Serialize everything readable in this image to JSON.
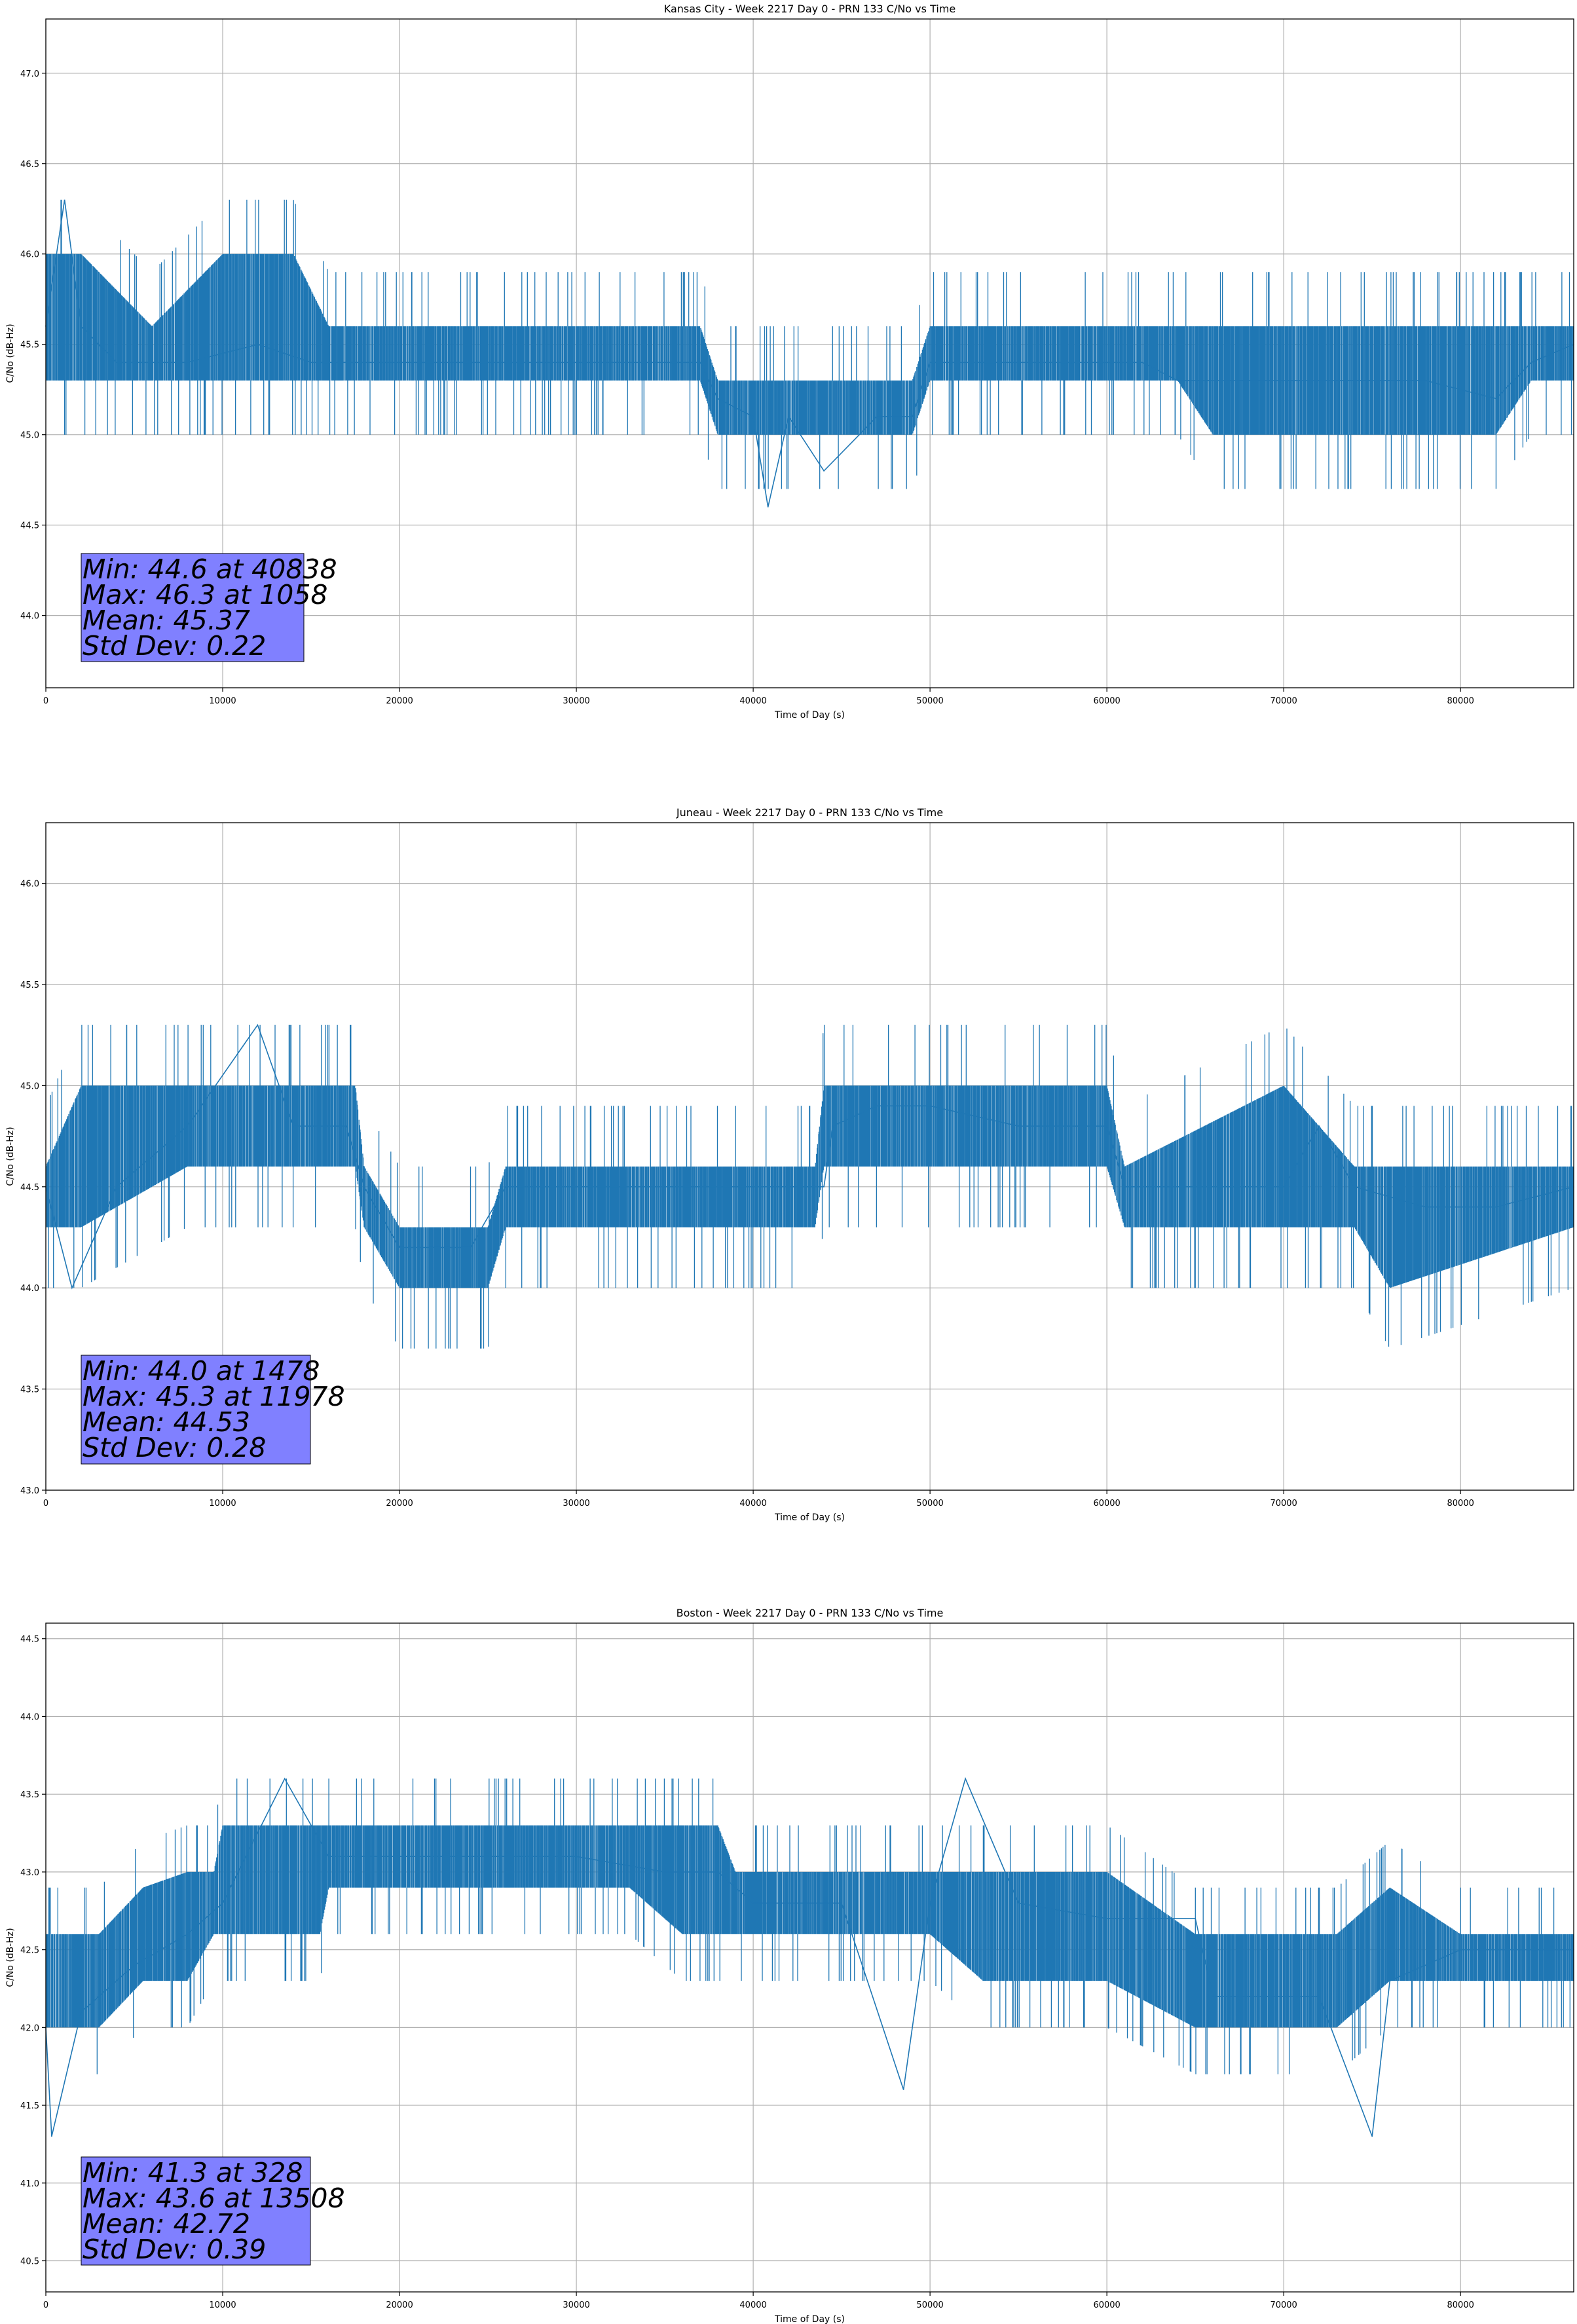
{
  "chart_data": [
    {
      "type": "line",
      "title": "Kansas City - Week 2217 Day 0 - PRN 133 C/No vs Time",
      "xlabel": "Time of Day (s)",
      "ylabel": "C/No (dB-Hz)",
      "xlim": [
        0,
        86400
      ],
      "ylim": [
        43.6,
        47.3
      ],
      "xticks": [
        0,
        10000,
        20000,
        30000,
        40000,
        50000,
        60000,
        70000,
        80000
      ],
      "yticks": [
        "44.0",
        "44.5",
        "45.0",
        "45.5",
        "46.0",
        "46.5",
        "47.0"
      ],
      "grid": true,
      "color": "#1f77b4",
      "series": [
        {
          "x": [
            0,
            1058,
            2000,
            4000,
            8000,
            12000,
            15000,
            16000,
            20000,
            23000,
            26000,
            30000,
            34000,
            37000,
            38000,
            40000,
            40838,
            42000,
            44000,
            47000,
            49000,
            50000,
            52000,
            55000,
            58000,
            62000,
            64000,
            66000,
            70000,
            74000,
            78000,
            82000,
            84000,
            86400
          ],
          "y": [
            45.6,
            46.3,
            45.6,
            45.4,
            45.4,
            45.5,
            45.4,
            45.4,
            45.4,
            45.4,
            45.4,
            45.4,
            45.4,
            45.4,
            45.2,
            45.1,
            44.6,
            45.1,
            44.8,
            45.1,
            45.1,
            45.4,
            45.4,
            45.4,
            45.4,
            45.4,
            45.3,
            45.3,
            45.3,
            45.3,
            45.3,
            45.2,
            45.4,
            45.5
          ]
        }
      ],
      "band": {
        "x": [
          0,
          2000,
          6000,
          10000,
          14000,
          16000,
          22000,
          30000,
          37000,
          38000,
          40000,
          44000,
          47000,
          49000,
          50000,
          55000,
          60000,
          64000,
          66000,
          70000,
          76000,
          82000,
          84000,
          86400
        ],
        "lo": [
          45.3,
          45.3,
          45.3,
          45.3,
          45.3,
          45.3,
          45.3,
          45.3,
          45.3,
          45.0,
          45.0,
          45.0,
          45.0,
          45.0,
          45.3,
          45.3,
          45.3,
          45.3,
          45.0,
          45.0,
          45.0,
          45.0,
          45.3,
          45.3
        ],
        "hi": [
          46.0,
          46.0,
          45.6,
          46.0,
          46.0,
          45.6,
          45.6,
          45.6,
          45.6,
          45.3,
          45.3,
          45.3,
          45.3,
          45.3,
          45.6,
          45.6,
          45.6,
          45.6,
          45.6,
          45.6,
          45.6,
          45.6,
          45.6,
          45.6
        ]
      },
      "stats": [
        "Min: 44.6 at 40838",
        "Max: 46.3 at 1058",
        "Mean: 45.37",
        "Std Dev: 0.22"
      ]
    },
    {
      "type": "line",
      "title": "Juneau - Week 2217 Day 0 - PRN 133 C/No vs Time",
      "xlabel": "Time of Day (s)",
      "ylabel": "C/No (dB-Hz)",
      "xlim": [
        0,
        86400
      ],
      "ylim": [
        43.0,
        46.3
      ],
      "xticks": [
        0,
        10000,
        20000,
        30000,
        40000,
        50000,
        60000,
        70000,
        80000
      ],
      "yticks": [
        "43.0",
        "43.5",
        "44.0",
        "44.5",
        "45.0",
        "45.5",
        "46.0"
      ],
      "grid": true,
      "color": "#1f77b4",
      "series": [
        {
          "x": [
            0,
            1478,
            4000,
            8000,
            11978,
            14000,
            17000,
            18000,
            20000,
            24000,
            26000,
            30000,
            35000,
            40000,
            44000,
            44500,
            47000,
            50000,
            55000,
            60000,
            61000,
            65000,
            70000,
            72000,
            74000,
            78000,
            82000,
            86400
          ],
          "y": [
            44.5,
            44.0,
            44.5,
            44.8,
            45.3,
            44.8,
            44.8,
            44.5,
            44.2,
            44.2,
            44.5,
            44.5,
            44.5,
            44.5,
            44.5,
            44.8,
            44.9,
            44.9,
            44.8,
            44.8,
            44.5,
            44.5,
            44.5,
            44.8,
            44.5,
            44.4,
            44.4,
            44.5
          ]
        }
      ],
      "band": {
        "x": [
          0,
          2000,
          8000,
          17500,
          18000,
          20000,
          25000,
          26000,
          43500,
          44000,
          60000,
          61000,
          70000,
          74000,
          76000,
          86400
        ],
        "lo": [
          44.3,
          44.3,
          44.6,
          44.6,
          44.3,
          44.0,
          44.0,
          44.3,
          44.3,
          44.6,
          44.6,
          44.3,
          44.3,
          44.3,
          44.0,
          44.3
        ],
        "hi": [
          44.6,
          45.0,
          45.0,
          45.0,
          44.6,
          44.3,
          44.3,
          44.6,
          44.6,
          45.0,
          45.0,
          44.6,
          45.0,
          44.6,
          44.6,
          44.6
        ]
      },
      "stats": [
        "Min: 44.0 at 1478",
        "Max: 45.3 at 11978",
        "Mean: 44.53",
        "Std Dev: 0.28"
      ]
    },
    {
      "type": "line",
      "title": "Boston - Week 2217 Day 0 - PRN 133 C/No vs Time",
      "xlabel": "Time of Day (s)",
      "ylabel": "C/No (dB-Hz)",
      "xlim": [
        0,
        86400
      ],
      "ylim": [
        40.3,
        44.6
      ],
      "xticks": [
        0,
        10000,
        20000,
        30000,
        40000,
        50000,
        60000,
        70000,
        80000
      ],
      "yticks": [
        "40.5",
        "41.0",
        "41.5",
        "42.0",
        "42.5",
        "43.0",
        "43.5",
        "44.0",
        "44.5"
      ],
      "grid": true,
      "color": "#1f77b4",
      "series": [
        {
          "x": [
            0,
            328,
            2000,
            5000,
            8000,
            10000,
            13508,
            16000,
            20000,
            25000,
            30000,
            35000,
            38000,
            40000,
            45000,
            48500,
            50000,
            52000,
            55000,
            60000,
            65000,
            66000,
            70000,
            72000,
            75000,
            76000,
            80000,
            86400
          ],
          "y": [
            42.0,
            41.3,
            42.1,
            42.4,
            42.6,
            42.8,
            43.6,
            43.1,
            43.1,
            43.1,
            43.1,
            43.0,
            43.0,
            42.8,
            42.8,
            41.6,
            42.8,
            43.6,
            42.8,
            42.7,
            42.7,
            42.2,
            42.2,
            42.2,
            41.3,
            42.3,
            42.5,
            42.5
          ]
        }
      ],
      "band": {
        "x": [
          0,
          3000,
          5500,
          8000,
          9500,
          10000,
          13000,
          15500,
          16000,
          20000,
          28000,
          33000,
          36000,
          38000,
          39000,
          48000,
          50000,
          53000,
          55000,
          60000,
          65000,
          66000,
          70000,
          73000,
          76000,
          80000,
          86400
        ],
        "lo": [
          42.0,
          42.0,
          42.3,
          42.3,
          42.6,
          42.6,
          42.6,
          42.6,
          42.9,
          42.9,
          42.9,
          42.9,
          42.6,
          42.6,
          42.6,
          42.6,
          42.6,
          42.3,
          42.3,
          42.3,
          42.0,
          42.0,
          42.0,
          42.0,
          42.3,
          42.3,
          42.3
        ],
        "hi": [
          42.6,
          42.6,
          42.9,
          43.0,
          43.0,
          43.3,
          43.3,
          43.3,
          43.3,
          43.3,
          43.3,
          43.3,
          43.3,
          43.3,
          43.0,
          43.0,
          43.0,
          43.0,
          43.0,
          43.0,
          42.6,
          42.6,
          42.6,
          42.6,
          42.9,
          42.6,
          42.6
        ]
      },
      "stats": [
        "Min: 41.3 at 328",
        "Max: 43.6 at 13508",
        "Mean: 42.72",
        "Std Dev: 0.39"
      ]
    }
  ]
}
